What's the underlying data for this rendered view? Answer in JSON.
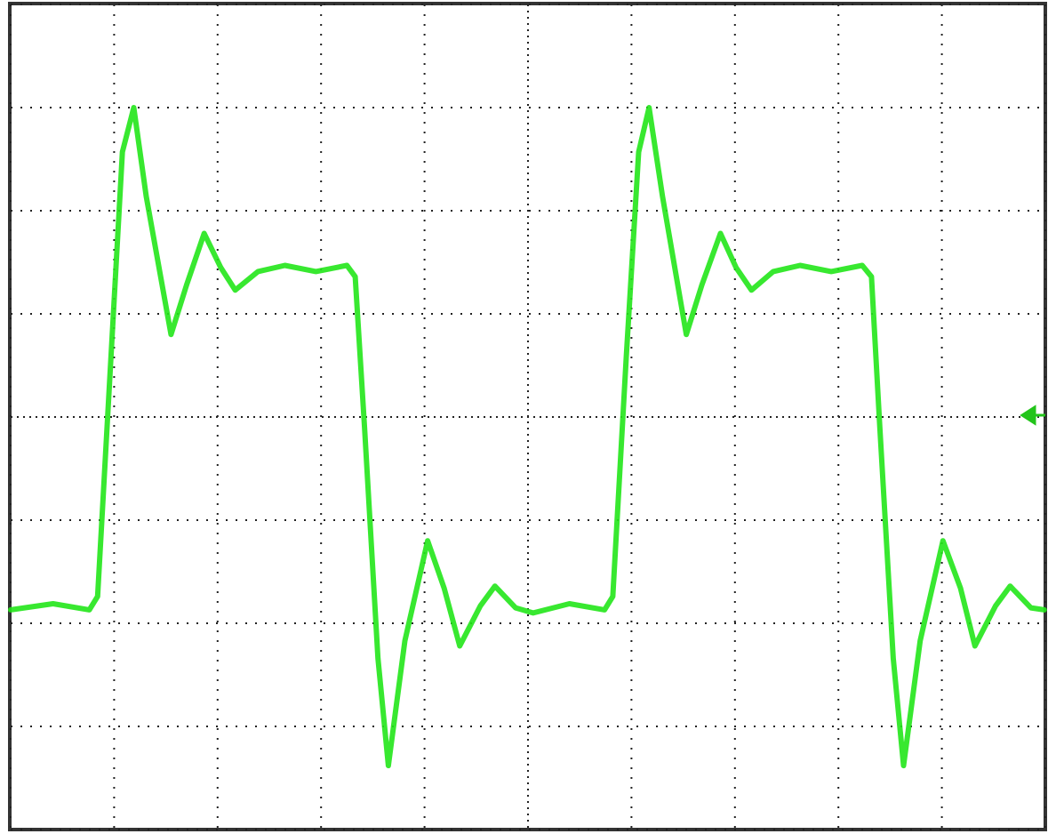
{
  "chart_data": {
    "type": "line",
    "color": "#22e61a",
    "grid": true,
    "xlim": [
      0,
      10
    ],
    "ylim": [
      -4,
      4
    ],
    "xticks": [
      0,
      1,
      2,
      3,
      4,
      5,
      6,
      7,
      8,
      9,
      10
    ],
    "yticks": [
      -4,
      -3,
      -2,
      -1,
      0,
      1,
      2,
      3,
      4
    ],
    "x": [
      0,
      0.41,
      0.76,
      0.84,
      0.97,
      1.08,
      1.19,
      1.31,
      1.55,
      1.7,
      1.87,
      2.03,
      2.17,
      2.39,
      2.65,
      2.95,
      3.25,
      3.33,
      3.42,
      3.55,
      3.65,
      3.81,
      4.03,
      4.19,
      4.34,
      4.54,
      4.68,
      4.88,
      5.05,
      5.4,
      5.74,
      5.82,
      5.95,
      6.07,
      6.17,
      6.3,
      6.53,
      6.68,
      6.86,
      7.01,
      7.16,
      7.37,
      7.63,
      7.93,
      8.23,
      8.32,
      8.4,
      8.53,
      8.63,
      8.79,
      9.01,
      9.18,
      9.32,
      9.52,
      9.66,
      9.86,
      9.99
    ],
    "values": [
      -1.87,
      -1.81,
      -1.87,
      -1.74,
      0.59,
      2.57,
      3.0,
      2.14,
      0.8,
      1.28,
      1.78,
      1.45,
      1.23,
      1.41,
      1.47,
      1.41,
      1.47,
      1.36,
      -0.1,
      -2.34,
      -3.38,
      -2.17,
      -1.2,
      -1.66,
      -2.22,
      -1.83,
      -1.64,
      -1.85,
      -1.9,
      -1.81,
      -1.87,
      -1.74,
      0.59,
      2.57,
      3.0,
      2.14,
      0.8,
      1.28,
      1.78,
      1.45,
      1.23,
      1.41,
      1.47,
      1.41,
      1.47,
      1.36,
      -0.1,
      -2.34,
      -3.38,
      -2.17,
      -1.2,
      -1.66,
      -2.22,
      -1.83,
      -1.64,
      -1.85,
      -1.87
    ]
  }
}
